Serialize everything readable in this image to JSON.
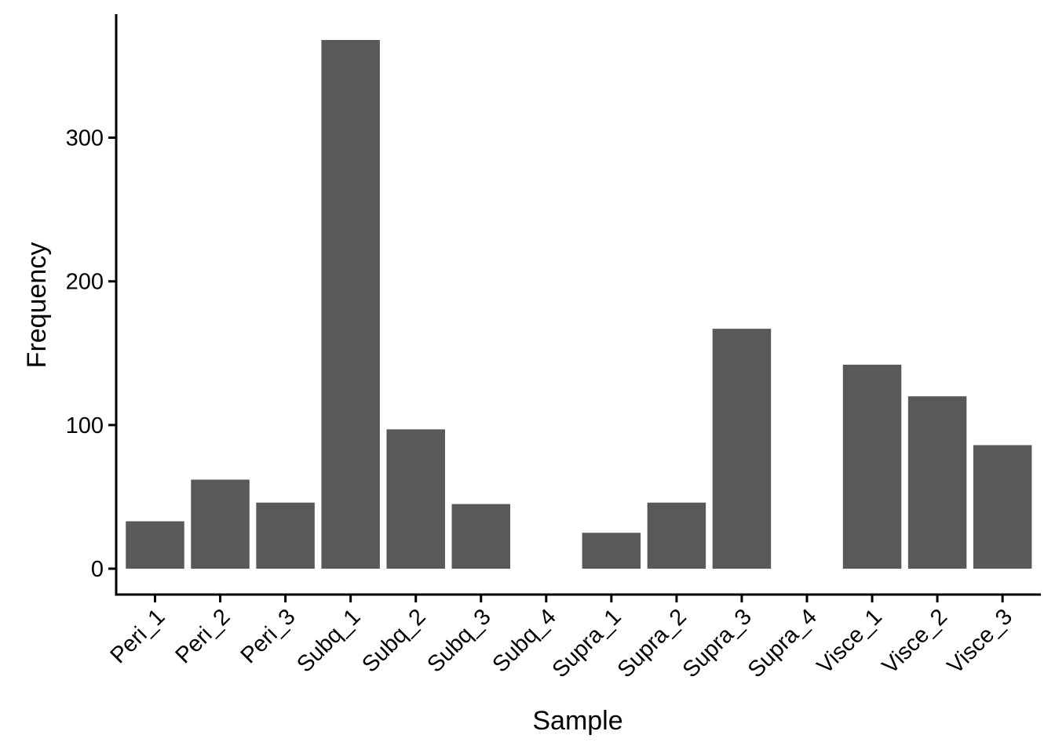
{
  "chart_data": {
    "type": "bar",
    "categories": [
      "Peri_1",
      "Peri_2",
      "Peri_3",
      "Subq_1",
      "Subq_2",
      "Subq_3",
      "Subq_4",
      "Supra_1",
      "Supra_2",
      "Supra_3",
      "Supra_4",
      "Visce_1",
      "Visce_2",
      "Visce_3"
    ],
    "values": [
      33,
      62,
      46,
      368,
      97,
      45,
      0,
      25,
      46,
      167,
      0,
      142,
      120,
      86
    ],
    "title": "",
    "xlabel": "Sample",
    "ylabel": "Frequency",
    "ylim": [
      -18,
      386
    ],
    "yticks": [
      0,
      100,
      200,
      300
    ],
    "bar_color": "#595959",
    "grid": false,
    "legend": "none"
  }
}
